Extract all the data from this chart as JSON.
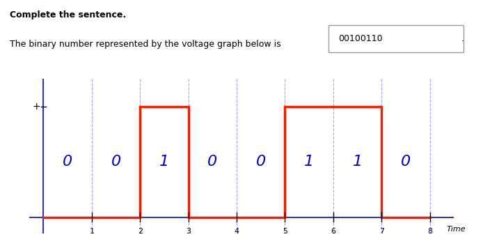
{
  "title_bold": "Complete the sentence.",
  "sentence": "The binary number represented by the voltage graph below is",
  "answer": "00100110",
  "binary_bits": [
    0,
    0,
    1,
    0,
    0,
    1,
    1,
    0
  ],
  "x_ticks": [
    1,
    2,
    3,
    4,
    5,
    6,
    7,
    8
  ],
  "x_min": 0,
  "x_max": 8.5,
  "y_min": -0.15,
  "y_max": 1.25,
  "high_level": 1.0,
  "low_level": 0.0,
  "signal_color": "#e8230a",
  "axis_color": "#3333bb",
  "grid_color": "#a0a0ff",
  "digit_color": "#0000cc",
  "time_label": "Time",
  "background_color": "#ffffff"
}
